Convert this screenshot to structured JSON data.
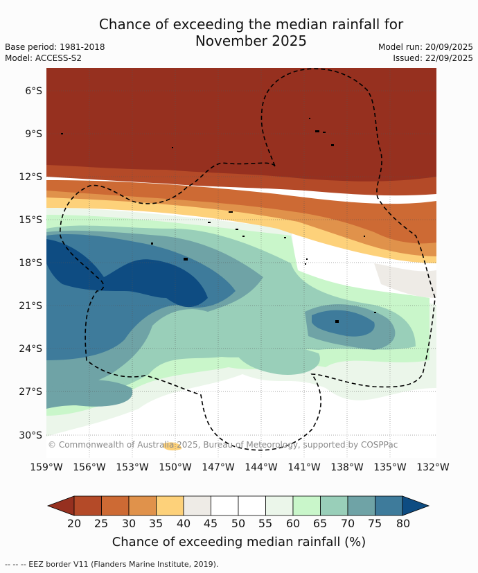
{
  "title": {
    "line1": "Chance of exceeding the median rainfall for",
    "line2": "November 2025"
  },
  "meta": {
    "base_period": "Base period: 1981-2018",
    "model": "Model: ACCESS-S2",
    "model_run": "Model run: 20/09/2025",
    "issued": "Issued: 22/09/2025"
  },
  "map": {
    "lat_labels": [
      "6°S",
      "9°S",
      "12°S",
      "15°S",
      "18°S",
      "21°S",
      "24°S",
      "27°S",
      "30°S"
    ],
    "lon_labels": [
      "159°W",
      "156°W",
      "153°W",
      "150°W",
      "147°W",
      "144°W",
      "141°W",
      "138°W",
      "135°W",
      "132°W"
    ],
    "copyright": "© Commonwealth of Australia 2025, Bureau of Meteorology, supported by COSPPac",
    "eez_line_style": "dashed-black"
  },
  "colorbar": {
    "ticks": [
      "20",
      "25",
      "30",
      "35",
      "40",
      "45",
      "50",
      "55",
      "60",
      "65",
      "70",
      "75",
      "80"
    ],
    "colors": [
      "#96301f",
      "#b44a28",
      "#cd6a34",
      "#e0924b",
      "#fdd17a",
      "#eeebe6",
      "#ffffff",
      "#ffffff",
      "#ebf6ea",
      "#c9f6ca",
      "#99cfb9",
      "#6fa3a6",
      "#3e7b9b",
      "#0e4c82"
    ],
    "title": "Chance of exceeding median rainfall (%)"
  },
  "footnote": "-- -- -- EEZ border V11 (Flanders Marine Institute, 2019)."
}
